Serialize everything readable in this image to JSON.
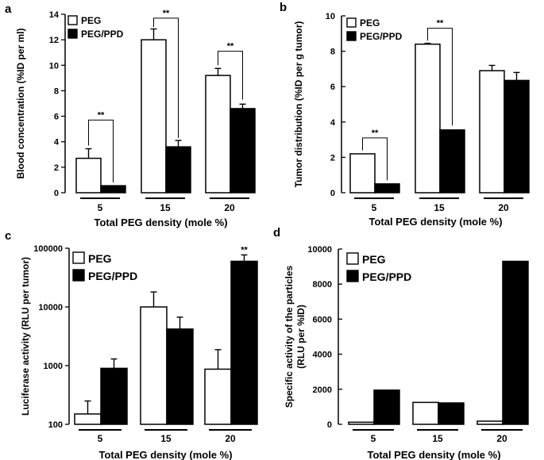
{
  "chart_data": [
    {
      "panel": "a",
      "type": "bar",
      "categories": [
        "5",
        "15",
        "20"
      ],
      "series": [
        {
          "name": "PEG",
          "values": [
            2.7,
            12.0,
            9.2
          ],
          "errors": [
            0.75,
            0.85,
            0.55
          ]
        },
        {
          "name": "PEG/PPD",
          "values": [
            0.55,
            3.6,
            6.6
          ],
          "errors": [
            0,
            0.5,
            0.35
          ]
        }
      ],
      "xlabel": "Total PEG density (mole %)",
      "ylabel": "Blood concentration (%ID per ml)",
      "ylim": [
        0,
        14
      ],
      "yticks": [
        "0",
        "2",
        "4",
        "6",
        "8",
        "10",
        "12",
        "14"
      ],
      "scale": "linear",
      "legend": "top-left",
      "significance": [
        "**",
        "**",
        "**"
      ]
    },
    {
      "panel": "b",
      "type": "bar",
      "categories": [
        "5",
        "15",
        "20"
      ],
      "series": [
        {
          "name": "PEG",
          "values": [
            2.2,
            8.4,
            6.9
          ],
          "errors": [
            0,
            0.05,
            0.3
          ]
        },
        {
          "name": "PEG/PPD",
          "values": [
            0.5,
            3.55,
            6.35
          ],
          "errors": [
            0,
            0,
            0.45
          ]
        }
      ],
      "xlabel": "Total PEG density (mole %)",
      "ylabel": "Tumor distribution (%ID per g tumor)",
      "ylim": [
        0,
        10
      ],
      "yticks": [
        "0",
        "2",
        "4",
        "6",
        "8",
        "10"
      ],
      "scale": "linear",
      "legend": "top-left",
      "significance": [
        "**",
        "**"
      ]
    },
    {
      "panel": "c",
      "type": "bar",
      "categories": [
        "5",
        "15",
        "20"
      ],
      "series": [
        {
          "name": "PEG",
          "values": [
            150,
            10000,
            870
          ],
          "errors": [
            100,
            8000,
            1000
          ]
        },
        {
          "name": "PEG/PPD",
          "values": [
            900,
            4200,
            60000
          ],
          "errors": [
            400,
            2500,
            17000
          ]
        }
      ],
      "xlabel": "Total PEG density (mole %)",
      "ylabel": "Luciferase activity (RLU per tumor)",
      "ylim": [
        100,
        100000
      ],
      "yticks": [
        "100",
        "1000",
        "10000",
        "100000"
      ],
      "scale": "log",
      "legend": "top-left",
      "annotations": [
        "**"
      ]
    },
    {
      "panel": "d",
      "type": "bar",
      "categories": [
        "5",
        "15",
        "20"
      ],
      "series": [
        {
          "name": "PEG",
          "values": [
            120,
            1250,
            180
          ]
        },
        {
          "name": "PEG/PPD",
          "values": [
            1950,
            1220,
            9300
          ]
        }
      ],
      "xlabel": "Total PEG density (mole %)",
      "ylabel": "Specific activity of the particles (RLU per %ID)",
      "ylabel_lines": [
        "Specific activity of the particles",
        "(RLU per %ID)"
      ],
      "ylim": [
        0,
        10000
      ],
      "yticks": [
        "0",
        "2000",
        "4000",
        "6000",
        "8000",
        "10000"
      ],
      "scale": "linear",
      "legend": "top-left"
    }
  ]
}
